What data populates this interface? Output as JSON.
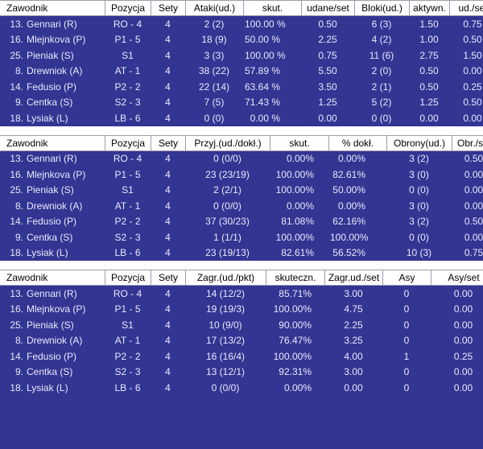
{
  "colors": {
    "body_bg": "#323592",
    "header_bg": "#ffffff",
    "header_text": "#000000",
    "body_text": "#e9e9fb",
    "grid_line": "#9c9cae",
    "gap_bg": "#ffffff"
  },
  "tables": [
    {
      "name": "attack-block",
      "columns": [
        "Zawodnik",
        "Pozycja",
        "Sety",
        "Ataki(ud.)",
        "skut.",
        "udane/set",
        "Bloki(ud.)",
        "aktywn.",
        "ud./set"
      ],
      "rows": [
        {
          "num": "13.",
          "name": "Gennari (R)",
          "position": "RO - 4",
          "sets": "4",
          "stats": [
            "2 (2)",
            "100.00 %",
            "0.50",
            "6 (3)",
            "1.50",
            "0.75"
          ]
        },
        {
          "num": "16.",
          "name": "Mlejnkova (P)",
          "position": "P1 - 5",
          "sets": "4",
          "stats": [
            "18 (9)",
            "50.00 %",
            "2.25",
            "4 (2)",
            "1.00",
            "0.50"
          ]
        },
        {
          "num": "25.",
          "name": "Pieniak (S)",
          "position": "S1",
          "sets": "4",
          "stats": [
            "3 (3)",
            "100.00 %",
            "0.75",
            "11 (6)",
            "2.75",
            "1.50"
          ]
        },
        {
          "num": "8.",
          "name": "Drewniok (A)",
          "position": "AT - 1",
          "sets": "4",
          "stats": [
            "38 (22)",
            "57.89 %",
            "5.50",
            "2 (0)",
            "0.50",
            "0.00"
          ]
        },
        {
          "num": "14.",
          "name": "Fedusio (P)",
          "position": "P2 - 2",
          "sets": "4",
          "stats": [
            "22 (14)",
            "63.64 %",
            "3.50",
            "2 (1)",
            "0.50",
            "0.25"
          ]
        },
        {
          "num": "9.",
          "name": "Centka (S)",
          "position": "S2 - 3",
          "sets": "4",
          "stats": [
            "7 (5)",
            "71.43 %",
            "1.25",
            "5 (2)",
            "1.25",
            "0.50"
          ]
        },
        {
          "num": "18.",
          "name": "Lysiak (L)",
          "position": "LB - 6",
          "sets": "4",
          "stats": [
            "0 (0)",
            "0.00 %",
            "0.00",
            "0 (0)",
            "0.00",
            "0.00"
          ]
        }
      ]
    },
    {
      "name": "reception-defense",
      "columns": [
        "Zawodnik",
        "Pozycja",
        "Sety",
        "Przyj.(ud./dokł.)",
        "skut.",
        "% dokł.",
        "Obrony(ud.)",
        "Obr./set"
      ],
      "rows": [
        {
          "num": "13.",
          "name": "Gennari (R)",
          "position": "RO - 4",
          "sets": "4",
          "stats": [
            "0 (0/0)",
            "0.00%",
            "0.00%",
            "3 (2)",
            "0.50"
          ]
        },
        {
          "num": "16.",
          "name": "Mlejnkova (P)",
          "position": "P1 - 5",
          "sets": "4",
          "stats": [
            "23 (23/19)",
            "100.00%",
            "82.61%",
            "3 (0)",
            "0.00"
          ]
        },
        {
          "num": "25.",
          "name": "Pieniak (S)",
          "position": "S1",
          "sets": "4",
          "stats": [
            "2 (2/1)",
            "100.00%",
            "50.00%",
            "0 (0)",
            "0.00"
          ]
        },
        {
          "num": "8.",
          "name": "Drewniok (A)",
          "position": "AT - 1",
          "sets": "4",
          "stats": [
            "0 (0/0)",
            "0.00%",
            "0.00%",
            "3 (0)",
            "0.00"
          ]
        },
        {
          "num": "14.",
          "name": "Fedusio (P)",
          "position": "P2 - 2",
          "sets": "4",
          "stats": [
            "37 (30/23)",
            "81.08%",
            "62.16%",
            "3 (2)",
            "0.50"
          ]
        },
        {
          "num": "9.",
          "name": "Centka (S)",
          "position": "S2 - 3",
          "sets": "4",
          "stats": [
            "1 (1/1)",
            "100.00%",
            "100.00%",
            "0 (0)",
            "0.00"
          ]
        },
        {
          "num": "18.",
          "name": "Lysiak (L)",
          "position": "LB - 6",
          "sets": "4",
          "stats": [
            "23 (19/13)",
            "82.61%",
            "56.52%",
            "10 (3)",
            "0.75"
          ]
        }
      ]
    },
    {
      "name": "serve",
      "columns": [
        "Zawodnik",
        "Pozycja",
        "Sety",
        "Zagr.(ud./pkt)",
        "skuteczn.",
        "Zagr.ud./set",
        "Asy",
        "Asy/set"
      ],
      "rows": [
        {
          "num": "13.",
          "name": "Gennari (R)",
          "position": "RO - 4",
          "sets": "4",
          "stats": [
            "14 (12/2)",
            "85.71%",
            "3.00",
            "0",
            "0.00"
          ]
        },
        {
          "num": "16.",
          "name": "Mlejnkova (P)",
          "position": "P1 - 5",
          "sets": "4",
          "stats": [
            "19 (19/3)",
            "100.00%",
            "4.75",
            "0",
            "0.00"
          ]
        },
        {
          "num": "25.",
          "name": "Pieniak (S)",
          "position": "S1",
          "sets": "4",
          "stats": [
            "10 (9/0)",
            "90.00%",
            "2.25",
            "0",
            "0.00"
          ]
        },
        {
          "num": "8.",
          "name": "Drewniok (A)",
          "position": "AT - 1",
          "sets": "4",
          "stats": [
            "17 (13/2)",
            "76.47%",
            "3.25",
            "0",
            "0.00"
          ]
        },
        {
          "num": "14.",
          "name": "Fedusio (P)",
          "position": "P2 - 2",
          "sets": "4",
          "stats": [
            "16 (16/4)",
            "100.00%",
            "4.00",
            "1",
            "0.25"
          ]
        },
        {
          "num": "9.",
          "name": "Centka (S)",
          "position": "S2 - 3",
          "sets": "4",
          "stats": [
            "13 (12/1)",
            "92.31%",
            "3.00",
            "0",
            "0.00"
          ]
        },
        {
          "num": "18.",
          "name": "Lysiak (L)",
          "position": "LB - 6",
          "sets": "4",
          "stats": [
            "0 (0/0)",
            "0.00%",
            "0.00",
            "0",
            "0.00"
          ]
        }
      ]
    }
  ]
}
